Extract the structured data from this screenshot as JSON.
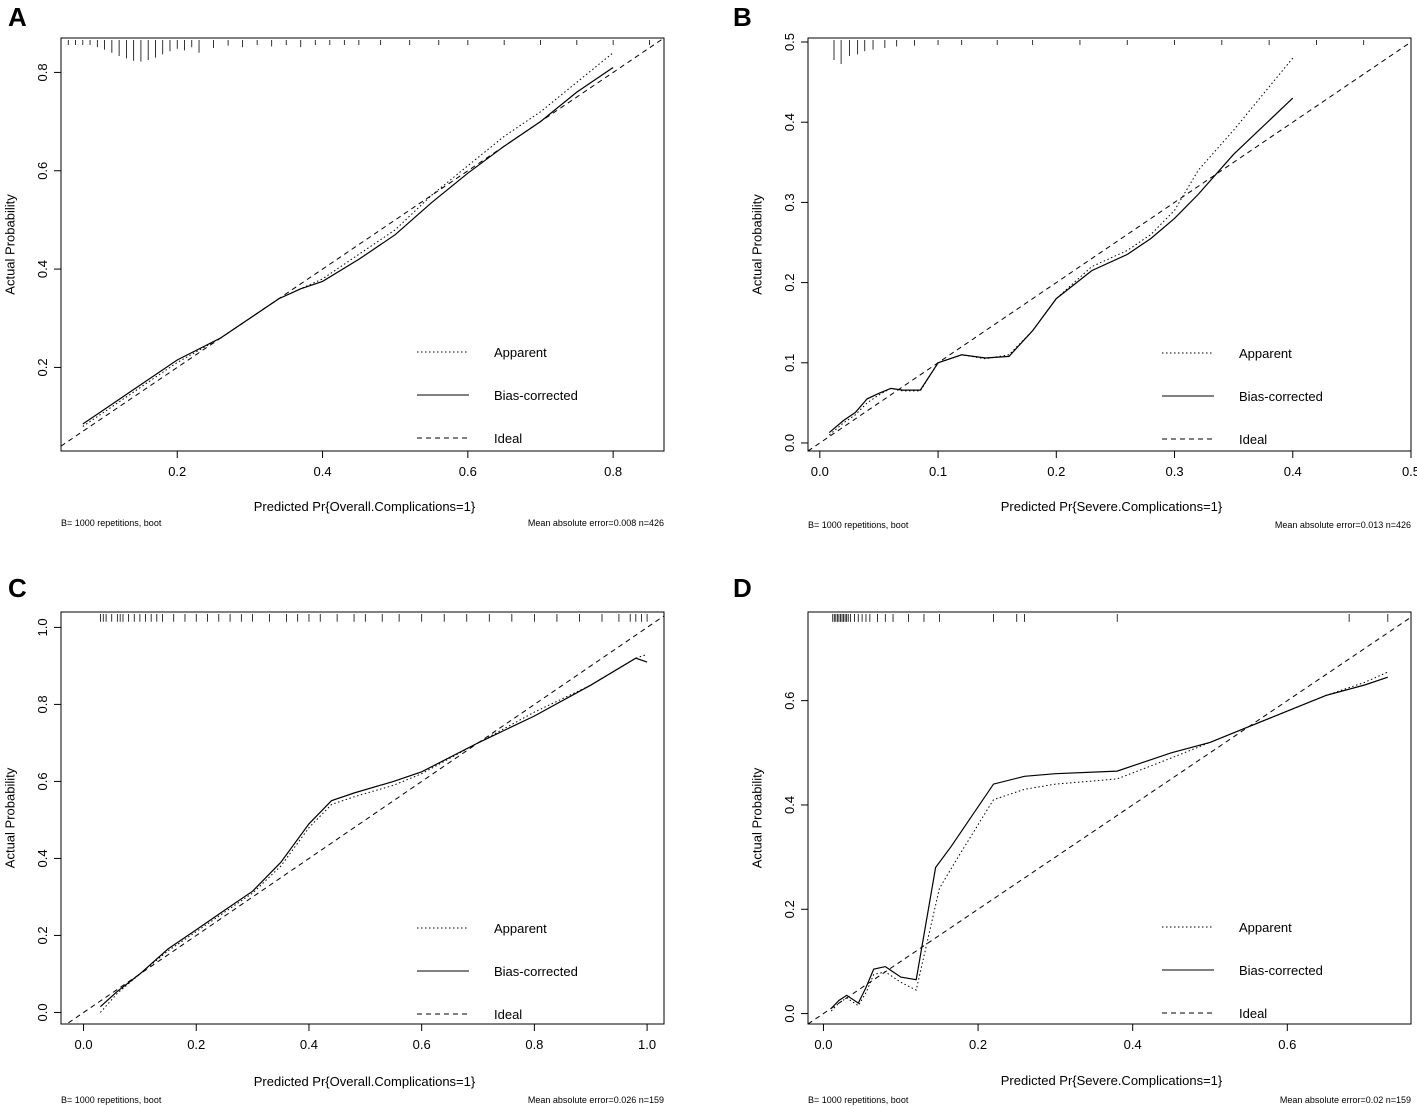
{
  "chart_data": [
    {
      "type": "line",
      "panel_label": "A",
      "xlabel": "Predicted Pr{Overall.Complications=1}",
      "ylabel": "Actual Probability",
      "xlim": [
        0.04,
        0.87
      ],
      "ylim": [
        0.03,
        0.87
      ],
      "x_ticks": [
        0.2,
        0.4,
        0.6,
        0.8
      ],
      "x_tick_labels": [
        "0.2",
        "0.4",
        "0.6",
        "0.8"
      ],
      "y_ticks": [
        0.2,
        0.4,
        0.6,
        0.8
      ],
      "y_tick_labels": [
        "0.2",
        "0.4",
        "0.6",
        "0.8"
      ],
      "legend": [
        "Apparent",
        "Bias-corrected",
        "Ideal"
      ],
      "legend_position": "bottom-right",
      "footnote_left": "B= 1000 repetitions, boot",
      "footnote_right": "Mean absolute error=0.008 n=426",
      "rug": {
        "x": [
          0.05,
          0.06,
          0.07,
          0.08,
          0.09,
          0.1,
          0.11,
          0.12,
          0.13,
          0.14,
          0.15,
          0.16,
          0.17,
          0.18,
          0.19,
          0.2,
          0.21,
          0.22,
          0.23,
          0.25,
          0.27,
          0.29,
          0.31,
          0.33,
          0.35,
          0.37,
          0.39,
          0.41,
          0.43,
          0.45,
          0.48,
          0.52,
          0.56,
          0.6,
          0.65,
          0.7,
          0.75,
          0.8,
          0.85
        ],
        "len": [
          0.2,
          0.3,
          0.4,
          0.6,
          0.9,
          1.2,
          1.6,
          2.0,
          2.3,
          2.6,
          2.7,
          2.5,
          2.2,
          1.8,
          1.4,
          1.1,
          1.3,
          0.9,
          1.6,
          1.0,
          0.7,
          0.9,
          0.6,
          0.8,
          0.5,
          0.9,
          0.4,
          0.6,
          0.3,
          0.4,
          0.3,
          0.3,
          0.2,
          0.3,
          0.2,
          0.2,
          0.2,
          0.2,
          0.2
        ]
      },
      "series": [
        {
          "name": "Apparent",
          "style": "dotted",
          "x": [
            0.07,
            0.1,
            0.15,
            0.2,
            0.26,
            0.3,
            0.34,
            0.37,
            0.4,
            0.45,
            0.5,
            0.55,
            0.6,
            0.65,
            0.7,
            0.75,
            0.8
          ],
          "y": [
            0.08,
            0.11,
            0.16,
            0.21,
            0.26,
            0.3,
            0.34,
            0.36,
            0.38,
            0.43,
            0.48,
            0.55,
            0.61,
            0.67,
            0.72,
            0.78,
            0.84
          ]
        },
        {
          "name": "Bias-corrected",
          "style": "solid",
          "x": [
            0.07,
            0.1,
            0.15,
            0.2,
            0.26,
            0.3,
            0.34,
            0.37,
            0.4,
            0.45,
            0.5,
            0.55,
            0.6,
            0.65,
            0.7,
            0.75,
            0.8
          ],
          "y": [
            0.085,
            0.115,
            0.165,
            0.215,
            0.26,
            0.3,
            0.34,
            0.36,
            0.375,
            0.42,
            0.47,
            0.535,
            0.595,
            0.65,
            0.7,
            0.76,
            0.81
          ]
        },
        {
          "name": "Ideal",
          "style": "dashed",
          "x": [
            0.04,
            0.87
          ],
          "y": [
            0.04,
            0.87
          ]
        }
      ]
    },
    {
      "type": "line",
      "panel_label": "B",
      "xlabel": "Predicted Pr{Severe.Complications=1}",
      "ylabel": "Actual Probability",
      "xlim": [
        -0.01,
        0.5
      ],
      "ylim": [
        -0.01,
        0.505
      ],
      "x_ticks": [
        0.0,
        0.1,
        0.2,
        0.3,
        0.4,
        0.5
      ],
      "x_tick_labels": [
        "0.0",
        "0.1",
        "0.2",
        "0.3",
        "0.4",
        "0.5"
      ],
      "y_ticks": [
        0.0,
        0.1,
        0.2,
        0.3,
        0.4,
        0.5
      ],
      "y_tick_labels": [
        "0.0",
        "0.1",
        "0.2",
        "0.3",
        "0.4",
        "0.5"
      ],
      "legend": [
        "Apparent",
        "Bias-corrected",
        "Ideal"
      ],
      "legend_position": "bottom-right",
      "footnote_left": "B= 1000 repetitions, boot",
      "footnote_right": "Mean absolute error=0.013 n=426",
      "rug": {
        "x": [
          0.012,
          0.018,
          0.025,
          0.032,
          0.038,
          0.045,
          0.055,
          0.065,
          0.08,
          0.1,
          0.12,
          0.15,
          0.18,
          0.22,
          0.26,
          0.3,
          0.34,
          0.38,
          0.42,
          0.46
        ],
        "len": [
          0.025,
          0.03,
          0.02,
          0.018,
          0.014,
          0.012,
          0.01,
          0.008,
          0.007,
          0.006,
          0.006,
          0.005,
          0.005,
          0.004,
          0.004,
          0.004,
          0.004,
          0.004,
          0.004,
          0.004
        ]
      },
      "series": [
        {
          "name": "Apparent",
          "style": "dotted",
          "x": [
            0.008,
            0.02,
            0.03,
            0.04,
            0.05,
            0.06,
            0.07,
            0.085,
            0.1,
            0.12,
            0.14,
            0.16,
            0.18,
            0.2,
            0.23,
            0.26,
            0.28,
            0.3,
            0.32,
            0.35,
            0.4
          ],
          "y": [
            0.01,
            0.025,
            0.035,
            0.05,
            0.06,
            0.068,
            0.065,
            0.065,
            0.1,
            0.11,
            0.105,
            0.11,
            0.14,
            0.18,
            0.22,
            0.24,
            0.26,
            0.29,
            0.34,
            0.39,
            0.48
          ]
        },
        {
          "name": "Bias-corrected",
          "style": "solid",
          "x": [
            0.008,
            0.02,
            0.03,
            0.04,
            0.05,
            0.06,
            0.07,
            0.085,
            0.1,
            0.12,
            0.14,
            0.16,
            0.18,
            0.2,
            0.23,
            0.26,
            0.28,
            0.3,
            0.32,
            0.35,
            0.4
          ],
          "y": [
            0.013,
            0.028,
            0.038,
            0.055,
            0.062,
            0.068,
            0.066,
            0.066,
            0.1,
            0.11,
            0.106,
            0.108,
            0.14,
            0.18,
            0.215,
            0.235,
            0.255,
            0.28,
            0.31,
            0.36,
            0.43
          ]
        },
        {
          "name": "Ideal",
          "style": "dashed",
          "x": [
            -0.01,
            0.5
          ],
          "y": [
            -0.01,
            0.5
          ]
        }
      ]
    },
    {
      "type": "line",
      "panel_label": "C",
      "xlabel": "Predicted Pr{Overall.Complications=1}",
      "ylabel": "Actual Probability",
      "xlim": [
        -0.04,
        1.03
      ],
      "ylim": [
        -0.03,
        1.04
      ],
      "x_ticks": [
        0.0,
        0.2,
        0.4,
        0.6,
        0.8,
        1.0
      ],
      "x_tick_labels": [
        "0.0",
        "0.2",
        "0.4",
        "0.6",
        "0.8",
        "1.0"
      ],
      "y_ticks": [
        0.0,
        0.2,
        0.4,
        0.6,
        0.8,
        1.0
      ],
      "y_tick_labels": [
        "0.0",
        "0.2",
        "0.4",
        "0.6",
        "0.8",
        "1.0"
      ],
      "legend": [
        "Apparent",
        "Bias-corrected",
        "Ideal"
      ],
      "legend_position": "bottom-right",
      "footnote_left": "B= 1000 repetitions, boot",
      "footnote_right": "Mean absolute error=0.026 n=159",
      "rug": {
        "x": [
          0.03,
          0.035,
          0.04,
          0.05,
          0.06,
          0.065,
          0.07,
          0.08,
          0.09,
          0.1,
          0.11,
          0.12,
          0.13,
          0.14,
          0.16,
          0.18,
          0.2,
          0.22,
          0.24,
          0.26,
          0.28,
          0.3,
          0.33,
          0.36,
          0.38,
          0.4,
          0.42,
          0.45,
          0.48,
          0.5,
          0.53,
          0.56,
          0.6,
          0.64,
          0.68,
          0.72,
          0.76,
          0.8,
          0.84,
          0.88,
          0.92,
          0.95,
          0.97,
          0.98,
          0.99,
          1.0
        ],
        "len": [
          0.02,
          0.02,
          0.02,
          0.02,
          0.02,
          0.02,
          0.02,
          0.02,
          0.02,
          0.02,
          0.02,
          0.02,
          0.02,
          0.02,
          0.02,
          0.02,
          0.02,
          0.02,
          0.02,
          0.02,
          0.02,
          0.02,
          0.02,
          0.02,
          0.02,
          0.02,
          0.02,
          0.02,
          0.02,
          0.02,
          0.02,
          0.02,
          0.02,
          0.02,
          0.02,
          0.02,
          0.02,
          0.02,
          0.02,
          0.02,
          0.02,
          0.02,
          0.02,
          0.02,
          0.02,
          0.02
        ]
      },
      "series": [
        {
          "name": "Apparent",
          "style": "dotted",
          "x": [
            0.03,
            0.06,
            0.1,
            0.15,
            0.2,
            0.25,
            0.3,
            0.35,
            0.4,
            0.44,
            0.48,
            0.55,
            0.6,
            0.7,
            0.8,
            0.9,
            0.98,
            1.0
          ],
          "y": [
            0.0,
            0.05,
            0.1,
            0.16,
            0.21,
            0.26,
            0.31,
            0.38,
            0.48,
            0.54,
            0.56,
            0.59,
            0.62,
            0.7,
            0.78,
            0.85,
            0.92,
            0.93
          ]
        },
        {
          "name": "Bias-corrected",
          "style": "solid",
          "x": [
            0.03,
            0.06,
            0.1,
            0.15,
            0.2,
            0.25,
            0.3,
            0.35,
            0.4,
            0.44,
            0.48,
            0.55,
            0.6,
            0.7,
            0.8,
            0.9,
            0.98,
            1.0
          ],
          "y": [
            0.015,
            0.055,
            0.1,
            0.165,
            0.215,
            0.265,
            0.315,
            0.39,
            0.49,
            0.55,
            0.57,
            0.6,
            0.625,
            0.7,
            0.77,
            0.85,
            0.92,
            0.91
          ]
        },
        {
          "name": "Ideal",
          "style": "dashed",
          "x": [
            -0.04,
            1.03
          ],
          "y": [
            -0.04,
            1.03
          ]
        }
      ]
    },
    {
      "type": "line",
      "panel_label": "D",
      "xlabel": "Predicted Pr{Severe.Complications=1}",
      "ylabel": "Actual Probability",
      "xlim": [
        -0.02,
        0.76
      ],
      "ylim": [
        -0.02,
        0.77
      ],
      "x_ticks": [
        0.0,
        0.2,
        0.4,
        0.6
      ],
      "x_tick_labels": [
        "0.0",
        "0.2",
        "0.4",
        "0.6"
      ],
      "y_ticks": [
        0.0,
        0.2,
        0.4,
        0.6
      ],
      "y_tick_labels": [
        "0.0",
        "0.2",
        "0.4",
        "0.6"
      ],
      "legend": [
        "Apparent",
        "Bias-corrected",
        "Ideal"
      ],
      "legend_position": "bottom-right",
      "footnote_left": "B= 1000 repetitions, boot",
      "footnote_right": "Mean absolute error=0.02 n=159",
      "rug": {
        "x": [
          0.012,
          0.014,
          0.016,
          0.018,
          0.02,
          0.022,
          0.024,
          0.026,
          0.028,
          0.03,
          0.032,
          0.035,
          0.04,
          0.045,
          0.05,
          0.055,
          0.06,
          0.07,
          0.08,
          0.09,
          0.11,
          0.13,
          0.15,
          0.22,
          0.25,
          0.26,
          0.38,
          0.68,
          0.73
        ],
        "len": [
          0.015,
          0.015,
          0.015,
          0.015,
          0.015,
          0.015,
          0.015,
          0.015,
          0.015,
          0.015,
          0.015,
          0.015,
          0.015,
          0.015,
          0.015,
          0.015,
          0.015,
          0.015,
          0.015,
          0.015,
          0.015,
          0.015,
          0.015,
          0.015,
          0.015,
          0.015,
          0.015,
          0.015,
          0.015
        ]
      },
      "series": [
        {
          "name": "Apparent",
          "style": "dotted",
          "x": [
            0.01,
            0.02,
            0.03,
            0.045,
            0.055,
            0.065,
            0.08,
            0.1,
            0.12,
            0.15,
            0.17,
            0.22,
            0.26,
            0.3,
            0.38,
            0.45,
            0.5,
            0.55,
            0.6,
            0.65,
            0.7,
            0.73
          ],
          "y": [
            0.005,
            0.02,
            0.03,
            0.015,
            0.04,
            0.075,
            0.08,
            0.06,
            0.045,
            0.24,
            0.29,
            0.41,
            0.43,
            0.44,
            0.45,
            0.49,
            0.52,
            0.55,
            0.58,
            0.61,
            0.635,
            0.655
          ]
        },
        {
          "name": "Bias-corrected",
          "style": "solid",
          "x": [
            0.01,
            0.02,
            0.03,
            0.045,
            0.055,
            0.065,
            0.08,
            0.1,
            0.12,
            0.145,
            0.165,
            0.22,
            0.26,
            0.3,
            0.38,
            0.45,
            0.5,
            0.55,
            0.6,
            0.65,
            0.7,
            0.73
          ],
          "y": [
            0.01,
            0.025,
            0.035,
            0.02,
            0.05,
            0.085,
            0.09,
            0.07,
            0.065,
            0.28,
            0.32,
            0.44,
            0.455,
            0.46,
            0.465,
            0.5,
            0.52,
            0.55,
            0.58,
            0.61,
            0.63,
            0.645
          ]
        },
        {
          "name": "Ideal",
          "style": "dashed",
          "x": [
            -0.02,
            0.76
          ],
          "y": [
            -0.02,
            0.76
          ]
        }
      ]
    }
  ]
}
